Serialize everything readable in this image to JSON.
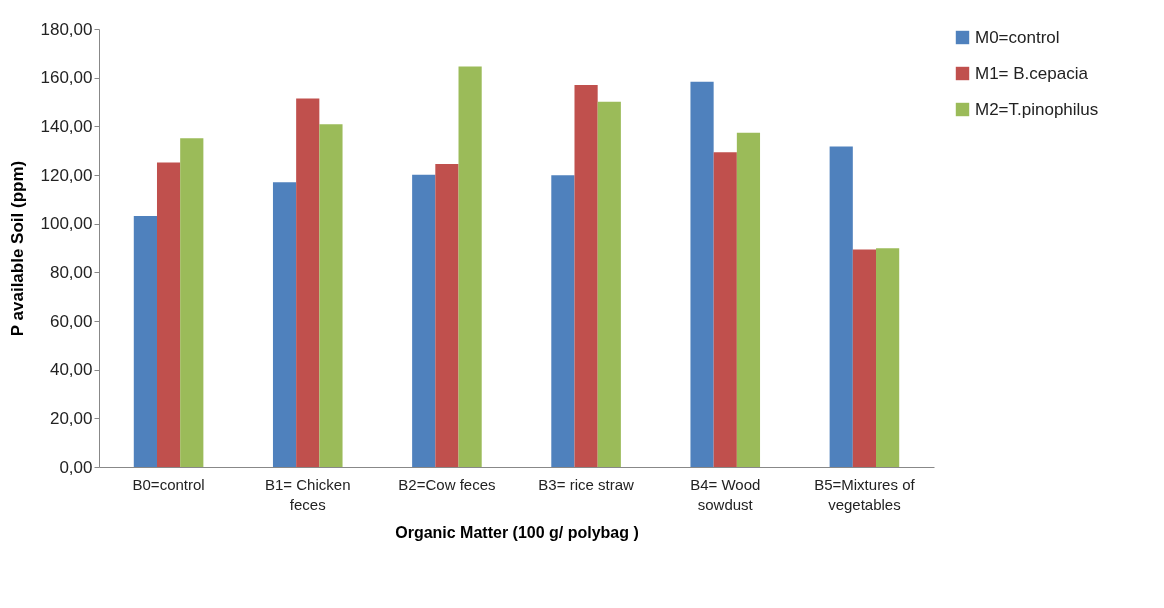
{
  "chart_data": {
    "type": "bar",
    "xlabel": "Organic Matter (100 g/ polybag )",
    "ylabel": "P available Soil (ppm)",
    "categories": [
      "B0=control",
      "B1= Chicken feces",
      "B2=Cow feces",
      "B3= rice straw",
      "B4= Wood sowdust",
      "B5=Mixtures of vegetables"
    ],
    "series": [
      {
        "name": "M0=control",
        "color": "#4f81bd",
        "values": [
          103.2,
          117.0,
          120.1,
          119.9,
          158.3,
          131.7
        ]
      },
      {
        "name": "M1= B.cepacia",
        "color": "#c0504d",
        "values": [
          125.1,
          151.4,
          124.5,
          157.0,
          129.4,
          89.4
        ]
      },
      {
        "name": "M2=T.pinophilus",
        "color": "#9bbb59",
        "values": [
          135.1,
          140.9,
          164.6,
          150.1,
          137.4,
          89.9
        ]
      }
    ],
    "ylim": [
      0,
      180
    ],
    "yticks": [
      {
        "value": 0,
        "label": "0,00"
      },
      {
        "value": 20,
        "label": "20,00"
      },
      {
        "value": 40,
        "label": "40,00"
      },
      {
        "value": 60,
        "label": "60,00"
      },
      {
        "value": 80,
        "label": "80,00"
      },
      {
        "value": 100,
        "label": "100,00"
      },
      {
        "value": 120,
        "label": "120,00"
      },
      {
        "value": 140,
        "label": "140,00"
      },
      {
        "value": 160,
        "label": "160,00"
      },
      {
        "value": 180,
        "label": "180,00"
      }
    ],
    "grid": false,
    "legend": "right"
  }
}
